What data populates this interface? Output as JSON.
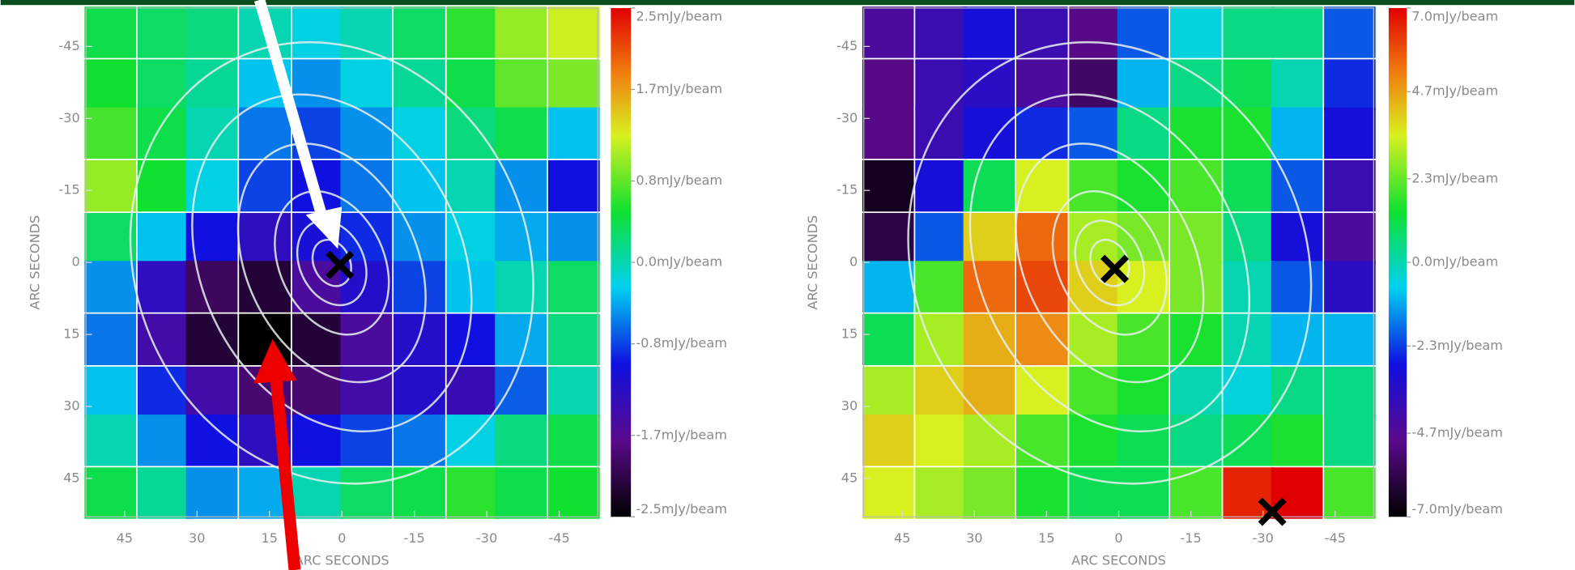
{
  "chart_data": [
    {
      "type": "heatmap",
      "xlabel": "ARC SECONDS",
      "ylabel": "ARC SECONDS",
      "x": [
        48,
        37,
        27,
        16,
        5,
        -5,
        -16,
        -27,
        -37,
        -48
      ],
      "y": [
        -48,
        -37,
        -27,
        -16,
        -5,
        5,
        16,
        27,
        37,
        48
      ],
      "values": [
        [
          0.4,
          0.3,
          0.2,
          0.0,
          -0.2,
          0.0,
          0.3,
          0.6,
          1.0,
          1.2
        ],
        [
          0.5,
          0.3,
          0.1,
          -0.3,
          -0.5,
          -0.2,
          0.1,
          0.4,
          0.8,
          0.9
        ],
        [
          0.7,
          0.4,
          0.0,
          -0.6,
          -0.8,
          -0.5,
          -0.2,
          0.2,
          0.4,
          -0.3
        ],
        [
          1.0,
          0.5,
          -0.2,
          -0.8,
          -1.0,
          -0.6,
          -0.3,
          0.0,
          -0.5,
          -1.0
        ],
        [
          0.3,
          -0.3,
          -1.0,
          -1.3,
          -1.1,
          -0.9,
          -0.5,
          -0.2,
          -0.4,
          -0.5
        ],
        [
          -0.5,
          -1.3,
          -2.0,
          -2.2,
          -1.6,
          -1.2,
          -0.8,
          -0.3,
          0.0,
          0.3
        ],
        [
          -0.6,
          -1.5,
          -2.2,
          -2.5,
          -2.2,
          -1.6,
          -1.2,
          -1.0,
          -0.4,
          0.2
        ],
        [
          -0.3,
          -0.9,
          -1.5,
          -1.9,
          -1.9,
          -1.5,
          -1.2,
          -1.4,
          -0.7,
          0.0
        ],
        [
          0.0,
          -0.5,
          -1.0,
          -1.3,
          -1.0,
          -0.8,
          -0.6,
          -0.2,
          0.2,
          0.4
        ],
        [
          0.4,
          0.1,
          -0.5,
          -0.4,
          0.0,
          0.3,
          0.4,
          0.6,
          0.4,
          0.5
        ]
      ],
      "xlim": [
        53,
        -53
      ],
      "ylim": [
        -53,
        53
      ],
      "xticks": [
        45,
        30,
        15,
        0,
        -15,
        -30,
        -45
      ],
      "yticks": [
        -45,
        -30,
        -15,
        0,
        15,
        30,
        45
      ],
      "clim": [
        -2.5,
        2.5
      ],
      "cticks": [
        {
          "value": 2.5,
          "label": "2.5mJy/beam"
        },
        {
          "value": 1.7,
          "label": "1.7mJy/beam"
        },
        {
          "value": 0.8,
          "label": "0.8mJy/beam"
        },
        {
          "value": 0.0,
          "label": "0.0mJy/beam"
        },
        {
          "value": -0.8,
          "label": "-0.8mJy/beam"
        },
        {
          "value": -1.7,
          "label": "-1.7mJy/beam"
        },
        {
          "value": -2.5,
          "label": "-2.5mJy/beam"
        }
      ]
    },
    {
      "type": "heatmap",
      "xlabel": "ARC SECONDS",
      "ylabel": "ARC SECONDS",
      "x": [
        48,
        37,
        27,
        16,
        5,
        -5,
        -16,
        -27,
        -37,
        -48
      ],
      "y": [
        -48,
        -37,
        -27,
        -16,
        -5,
        5,
        16,
        27,
        37,
        48
      ],
      "values": [
        [
          -4.5,
          -4,
          -3,
          -4,
          -5,
          -2,
          -0.5,
          0.5,
          0.5,
          -2
        ],
        [
          -5,
          -4,
          -3.5,
          -4.5,
          -5.5,
          -1,
          0.5,
          1,
          0,
          -2.5
        ],
        [
          -5,
          -4,
          -3,
          -2.5,
          -2,
          0.5,
          1.5,
          1.5,
          -1,
          -3
        ],
        [
          -6.5,
          -3,
          1,
          3.5,
          2,
          1.5,
          2,
          1,
          -2,
          -4
        ],
        [
          -6,
          -2,
          4,
          5.5,
          3,
          2.5,
          2.5,
          0.5,
          -3,
          -4.5
        ],
        [
          -1,
          2,
          5.5,
          6,
          4,
          3.5,
          2.5,
          0,
          -2,
          -3.5
        ],
        [
          1,
          3,
          4.5,
          5,
          3,
          2,
          1.5,
          0,
          -1,
          -1
        ],
        [
          3,
          4,
          4.5,
          3.5,
          2,
          1.5,
          0,
          -0.5,
          0.5,
          0.5
        ],
        [
          4,
          3.5,
          3,
          2,
          1.5,
          1,
          0.5,
          1,
          1.5,
          0.5
        ],
        [
          3.5,
          3,
          2.5,
          1.5,
          1,
          1,
          2,
          6.5,
          7,
          2
        ]
      ],
      "xlim": [
        53,
        -53
      ],
      "ylim": [
        -53,
        53
      ],
      "xticks": [
        45,
        30,
        15,
        0,
        -15,
        -30,
        -45
      ],
      "yticks": [
        -45,
        -30,
        -15,
        0,
        15,
        30,
        45
      ],
      "clim": [
        -7.0,
        7.0
      ],
      "cticks": [
        {
          "value": 7.0,
          "label": "7.0mJy/beam"
        },
        {
          "value": 4.7,
          "label": "4.7mJy/beam"
        },
        {
          "value": 2.3,
          "label": "2.3mJy/beam"
        },
        {
          "value": 0.0,
          "label": "0.0mJy/beam"
        },
        {
          "value": -2.3,
          "label": "-2.3mJy/beam"
        },
        {
          "value": -4.7,
          "label": "-4.7mJy/beam"
        },
        {
          "value": -7.0,
          "label": "-7.0mJy/beam"
        }
      ]
    }
  ]
}
